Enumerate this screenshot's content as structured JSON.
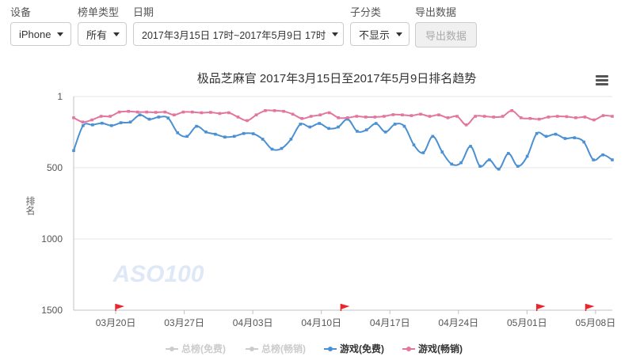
{
  "filters": {
    "device": {
      "label": "设备",
      "value": "iPhone"
    },
    "rank_type": {
      "label": "榜单类型",
      "value": "所有"
    },
    "date": {
      "label": "日期",
      "value": "2017年3月15日 17时~2017年5月9日 17时"
    },
    "subcategory": {
      "label": "子分类",
      "value": "不显示"
    },
    "export": {
      "label": "导出数据",
      "button": "导出数据"
    }
  },
  "watermark": "ASO100",
  "colors": {
    "free": "#4a90d2",
    "paid": "#e3769e",
    "inactive": "#cccccc",
    "grid": "#e6e6e6",
    "flag": "#e8262b"
  },
  "chart_data": {
    "type": "line",
    "title": "极品芝麻官 2017年3月15日至2017年5月9日排名趋势",
    "ylabel": "排名",
    "y_reversed": true,
    "ylim": [
      1,
      1500
    ],
    "y_ticks": [
      "1",
      "500",
      "1000",
      "1500"
    ],
    "x_range": [
      "2017-03-15 17:00",
      "2017-05-09 17:00"
    ],
    "x_ticks": [
      "03月20日",
      "03月27日",
      "04月03日",
      "04月10日",
      "04月17日",
      "04月24日",
      "05月01日",
      "05月08日"
    ],
    "flags_at": [
      "2017-03-20",
      "2017-04-12",
      "2017-05-02",
      "2017-05-07"
    ],
    "legend": [
      {
        "name": "总榜(免费)",
        "active": false
      },
      {
        "name": "总榜(畅销)",
        "active": false
      },
      {
        "name": "游戏(免费)",
        "active": true
      },
      {
        "name": "游戏(畅销)",
        "active": true
      }
    ],
    "series": [
      {
        "name": "游戏(免费)",
        "color": "#4a90d2",
        "values": [
          380,
          205,
          200,
          188,
          205,
          185,
          180,
          130,
          160,
          145,
          152,
          255,
          280,
          210,
          250,
          265,
          285,
          280,
          260,
          262,
          300,
          370,
          365,
          300,
          195,
          215,
          190,
          225,
          215,
          160,
          245,
          235,
          190,
          250,
          195,
          210,
          340,
          395,
          280,
          390,
          475,
          465,
          350,
          490,
          445,
          510,
          400,
          490,
          420,
          260,
          280,
          265,
          295,
          290,
          320,
          445,
          410,
          445
        ]
      },
      {
        "name": "游戏(畅销)",
        "color": "#e3769e",
        "values": [
          150,
          180,
          165,
          140,
          140,
          110,
          105,
          110,
          110,
          112,
          110,
          130,
          110,
          110,
          115,
          112,
          120,
          115,
          145,
          170,
          130,
          100,
          100,
          105,
          125,
          155,
          140,
          130,
          115,
          150,
          150,
          140,
          145,
          145,
          140,
          128,
          130,
          135,
          125,
          140,
          130,
          150,
          140,
          200,
          140,
          140,
          145,
          140,
          100,
          150,
          155,
          160,
          145,
          140,
          142,
          150,
          145,
          165,
          135,
          140
        ]
      }
    ]
  }
}
